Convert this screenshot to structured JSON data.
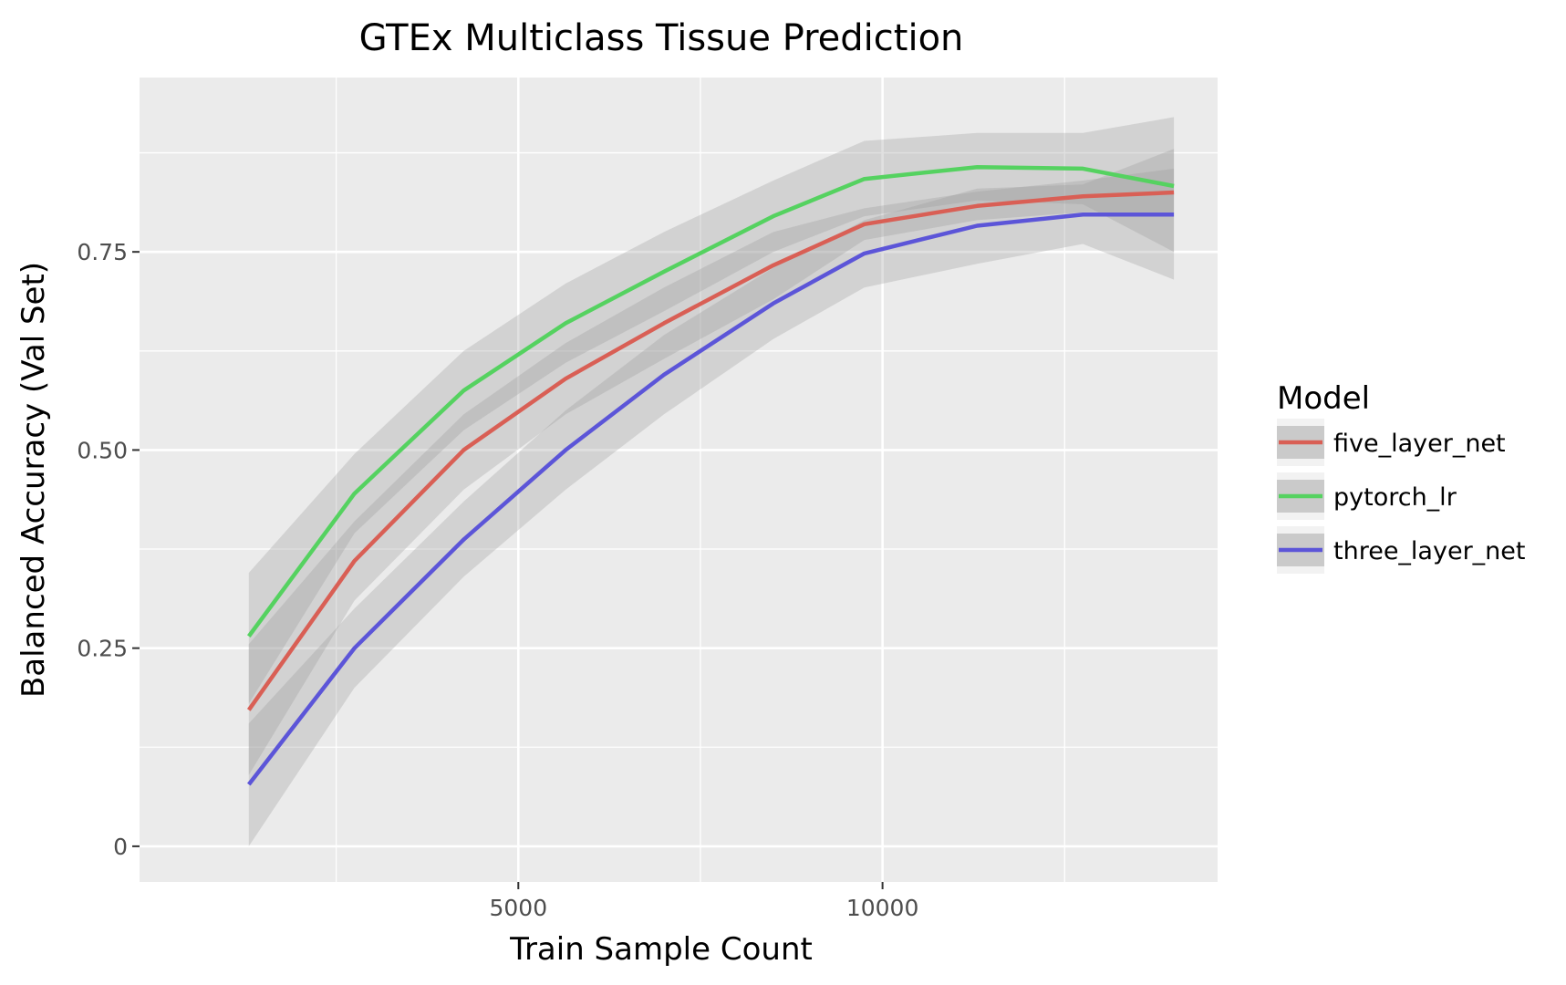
{
  "chart_data": {
    "type": "line",
    "title": "GTEx Multiclass Tissue Prediction",
    "xlabel": "Train Sample Count",
    "ylabel": "Balanced Accuracy (Val Set)",
    "xlim": [
      -200,
      14600
    ],
    "ylim": [
      -0.045,
      0.97
    ],
    "x_ticks": [
      5000,
      10000
    ],
    "x_tick_labels": [
      "5000",
      "10000"
    ],
    "x_minor_ticks": [
      2500,
      7500,
      12500
    ],
    "y_ticks": [
      0,
      0.25,
      0.5,
      0.75
    ],
    "y_tick_labels": [
      "0",
      "0.25",
      "0.50",
      "0.75"
    ],
    "y_minor_ticks": [
      0.125,
      0.375,
      0.625,
      0.875
    ],
    "grid": true,
    "background": "#ebebeb",
    "band_color": "#999999",
    "legend": {
      "title": "Model",
      "position": "right"
    },
    "series": [
      {
        "name": "five_layer_net",
        "color": "#d95f55",
        "x": [
          1300,
          2750,
          4250,
          5650,
          7000,
          8500,
          9750,
          11300,
          12750,
          14000
        ],
        "y": [
          0.172,
          0.36,
          0.5,
          0.59,
          0.66,
          0.733,
          0.785,
          0.808,
          0.82,
          0.825
        ],
        "lower": [
          0.09,
          0.31,
          0.45,
          0.545,
          0.615,
          0.69,
          0.765,
          0.79,
          0.8,
          0.8
        ],
        "upper": [
          0.255,
          0.41,
          0.545,
          0.635,
          0.705,
          0.775,
          0.805,
          0.826,
          0.84,
          0.855
        ]
      },
      {
        "name": "pytorch_lr",
        "color": "#55d260",
        "x": [
          1300,
          2750,
          4250,
          5650,
          7000,
          8500,
          9750,
          11300,
          12750,
          14000
        ],
        "y": [
          0.265,
          0.445,
          0.575,
          0.66,
          0.725,
          0.795,
          0.842,
          0.857,
          0.855,
          0.833
        ],
        "lower": [
          0.18,
          0.395,
          0.525,
          0.61,
          0.675,
          0.75,
          0.795,
          0.815,
          0.81,
          0.75
        ],
        "upper": [
          0.345,
          0.495,
          0.625,
          0.71,
          0.775,
          0.84,
          0.89,
          0.9,
          0.9,
          0.92
        ]
      },
      {
        "name": "three_layer_net",
        "color": "#5c55d8",
        "x": [
          1300,
          2750,
          4250,
          5650,
          7000,
          8500,
          9750,
          11300,
          12750,
          14000
        ],
        "y": [
          0.078,
          0.25,
          0.387,
          0.5,
          0.595,
          0.685,
          0.748,
          0.783,
          0.797,
          0.797
        ],
        "lower": [
          0.0,
          0.2,
          0.34,
          0.45,
          0.545,
          0.64,
          0.705,
          0.735,
          0.76,
          0.715
        ],
        "upper": [
          0.155,
          0.3,
          0.435,
          0.55,
          0.645,
          0.73,
          0.79,
          0.83,
          0.835,
          0.88
        ]
      }
    ]
  }
}
